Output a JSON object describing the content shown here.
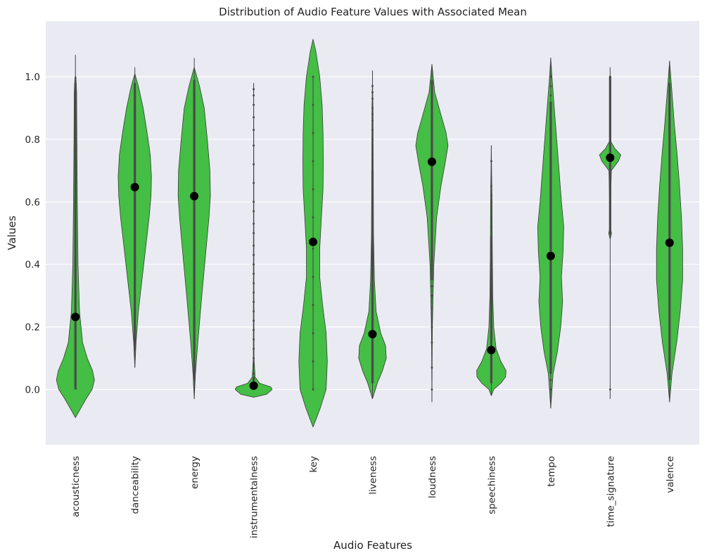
{
  "chart_data": {
    "type": "violin",
    "title": "Distribution of Audio Feature Values with Associated Mean",
    "xlabel": "Audio Features",
    "ylabel": "Values",
    "ylim": [
      -0.18,
      1.18
    ],
    "yticks": [
      0.0,
      0.2,
      0.4,
      0.6,
      0.8,
      1.0
    ],
    "ytick_labels": [
      "0.0",
      "0.2",
      "0.4",
      "0.6",
      "0.8",
      "1.0"
    ],
    "grid": true,
    "colors": {
      "violin_fill": "#44be44",
      "violin_edge": "#3a3a3a",
      "mean_marker": "#000000",
      "background": "#eaeaf2",
      "grid": "#ffffff"
    },
    "categories": [
      "acousticness",
      "danceability",
      "energy",
      "instrumentalness",
      "key",
      "liveness",
      "loudness",
      "speechiness",
      "tempo",
      "time_signature",
      "valence"
    ],
    "means": [
      0.232,
      0.647,
      0.618,
      0.012,
      0.472,
      0.177,
      0.728,
      0.126,
      0.427,
      0.741,
      0.469
    ],
    "violins": [
      {
        "name": "acousticness",
        "whisker": [
          0.0,
          1.07
        ],
        "bar": [
          0.0,
          0.98
        ],
        "profile": [
          [
            -0.09,
            0.0
          ],
          [
            -0.07,
            0.15
          ],
          [
            -0.03,
            0.45
          ],
          [
            0.0,
            0.7
          ],
          [
            0.03,
            0.8
          ],
          [
            0.06,
            0.72
          ],
          [
            0.1,
            0.5
          ],
          [
            0.15,
            0.3
          ],
          [
            0.25,
            0.17
          ],
          [
            0.4,
            0.11
          ],
          [
            0.6,
            0.08
          ],
          [
            0.8,
            0.06
          ],
          [
            0.95,
            0.05
          ],
          [
            1.0,
            0.02
          ]
        ]
      },
      {
        "name": "danceability",
        "whisker": [
          0.07,
          1.03
        ],
        "bar": [
          0.13,
          0.98
        ],
        "profile": [
          [
            0.07,
            0.0
          ],
          [
            0.15,
            0.05
          ],
          [
            0.25,
            0.15
          ],
          [
            0.35,
            0.3
          ],
          [
            0.45,
            0.45
          ],
          [
            0.55,
            0.6
          ],
          [
            0.62,
            0.68
          ],
          [
            0.68,
            0.7
          ],
          [
            0.75,
            0.65
          ],
          [
            0.82,
            0.52
          ],
          [
            0.9,
            0.35
          ],
          [
            0.97,
            0.15
          ],
          [
            1.01,
            0.0
          ]
        ]
      },
      {
        "name": "energy",
        "whisker": [
          -0.03,
          1.06
        ],
        "bar": [
          0.03,
          0.99
        ],
        "profile": [
          [
            -0.03,
            0.0
          ],
          [
            0.05,
            0.05
          ],
          [
            0.15,
            0.15
          ],
          [
            0.3,
            0.32
          ],
          [
            0.45,
            0.5
          ],
          [
            0.55,
            0.62
          ],
          [
            0.62,
            0.68
          ],
          [
            0.7,
            0.66
          ],
          [
            0.8,
            0.55
          ],
          [
            0.9,
            0.42
          ],
          [
            0.97,
            0.22
          ],
          [
            1.03,
            0.0
          ]
        ]
      },
      {
        "name": "instrumentalness",
        "whisker": [
          0.0,
          0.98
        ],
        "bar": [
          0.0,
          0.04
        ],
        "profile": [
          [
            -0.025,
            0.0
          ],
          [
            -0.015,
            0.55
          ],
          [
            0.0,
            0.78
          ],
          [
            0.008,
            0.72
          ],
          [
            0.02,
            0.25
          ],
          [
            0.04,
            0.06
          ],
          [
            0.1,
            0.015
          ],
          [
            0.5,
            0.01
          ],
          [
            0.97,
            0.0
          ]
        ]
      },
      {
        "name": "key",
        "whisker": [
          0.0,
          1.0
        ],
        "bar": [
          0.0,
          0.0
        ],
        "profile": [
          [
            -0.12,
            0.0
          ],
          [
            -0.06,
            0.3
          ],
          [
            0.0,
            0.55
          ],
          [
            0.09,
            0.6
          ],
          [
            0.18,
            0.55
          ],
          [
            0.27,
            0.4
          ],
          [
            0.36,
            0.28
          ],
          [
            0.45,
            0.28
          ],
          [
            0.55,
            0.35
          ],
          [
            0.64,
            0.42
          ],
          [
            0.73,
            0.43
          ],
          [
            0.82,
            0.42
          ],
          [
            0.91,
            0.38
          ],
          [
            1.0,
            0.28
          ],
          [
            1.08,
            0.12
          ],
          [
            1.12,
            0.0
          ]
        ]
      },
      {
        "name": "liveness",
        "whisker": [
          -0.03,
          1.02
        ],
        "bar": [
          0.02,
          0.7
        ],
        "profile": [
          [
            -0.03,
            0.0
          ],
          [
            0.02,
            0.2
          ],
          [
            0.06,
            0.42
          ],
          [
            0.1,
            0.58
          ],
          [
            0.14,
            0.55
          ],
          [
            0.18,
            0.35
          ],
          [
            0.25,
            0.15
          ],
          [
            0.35,
            0.08
          ],
          [
            0.5,
            0.04
          ],
          [
            0.7,
            0.03
          ],
          [
            0.9,
            0.02
          ],
          [
            1.0,
            0.0
          ]
        ]
      },
      {
        "name": "loudness",
        "whisker": [
          -0.04,
          1.04
        ],
        "bar": [
          0.35,
          0.99
        ],
        "profile": [
          [
            -0.04,
            0.0
          ],
          [
            0.2,
            0.02
          ],
          [
            0.4,
            0.08
          ],
          [
            0.55,
            0.2
          ],
          [
            0.65,
            0.38
          ],
          [
            0.72,
            0.55
          ],
          [
            0.78,
            0.68
          ],
          [
            0.82,
            0.6
          ],
          [
            0.86,
            0.45
          ],
          [
            0.9,
            0.3
          ],
          [
            0.95,
            0.12
          ],
          [
            1.04,
            0.0
          ]
        ]
      },
      {
        "name": "speechiness",
        "whisker": [
          -0.02,
          0.78
        ],
        "bar": [
          0.02,
          0.49
        ],
        "profile": [
          [
            -0.02,
            0.0
          ],
          [
            0.0,
            0.1
          ],
          [
            0.02,
            0.4
          ],
          [
            0.04,
            0.6
          ],
          [
            0.06,
            0.62
          ],
          [
            0.09,
            0.4
          ],
          [
            0.13,
            0.2
          ],
          [
            0.2,
            0.1
          ],
          [
            0.3,
            0.06
          ],
          [
            0.45,
            0.04
          ],
          [
            0.6,
            0.03
          ],
          [
            0.78,
            0.0
          ]
        ]
      },
      {
        "name": "tempo",
        "whisker": [
          -0.06,
          1.06
        ],
        "bar": [
          0.05,
          0.92
        ],
        "profile": [
          [
            -0.06,
            0.0
          ],
          [
            0.05,
            0.1
          ],
          [
            0.12,
            0.28
          ],
          [
            0.2,
            0.42
          ],
          [
            0.28,
            0.5
          ],
          [
            0.36,
            0.45
          ],
          [
            0.44,
            0.52
          ],
          [
            0.52,
            0.55
          ],
          [
            0.6,
            0.45
          ],
          [
            0.7,
            0.35
          ],
          [
            0.8,
            0.25
          ],
          [
            0.9,
            0.15
          ],
          [
            1.0,
            0.05
          ],
          [
            1.06,
            0.0
          ]
        ]
      },
      {
        "name": "time_signature",
        "whisker": [
          -0.03,
          1.03
        ],
        "bar": [
          0.5,
          1.0
        ],
        "profile": [
          [
            0.48,
            0.0
          ],
          [
            0.5,
            0.06
          ],
          [
            0.52,
            0.0
          ],
          [
            0.7,
            0.05
          ],
          [
            0.73,
            0.35
          ],
          [
            0.75,
            0.45
          ],
          [
            0.77,
            0.2
          ],
          [
            0.79,
            0.05
          ],
          [
            0.8,
            0.0
          ]
        ]
      },
      {
        "name": "valence",
        "whisker": [
          -0.04,
          1.05
        ],
        "bar": [
          0.03,
          0.98
        ],
        "profile": [
          [
            -0.04,
            0.0
          ],
          [
            0.05,
            0.1
          ],
          [
            0.15,
            0.3
          ],
          [
            0.25,
            0.45
          ],
          [
            0.35,
            0.55
          ],
          [
            0.45,
            0.55
          ],
          [
            0.55,
            0.5
          ],
          [
            0.65,
            0.42
          ],
          [
            0.75,
            0.32
          ],
          [
            0.85,
            0.2
          ],
          [
            0.95,
            0.1
          ],
          [
            1.05,
            0.0
          ]
        ]
      }
    ],
    "outliers": [
      {
        "name": "danceability",
        "values": [
          0.13,
          0.16,
          0.18,
          0.2,
          0.22,
          0.24
        ]
      },
      {
        "name": "energy",
        "values": [
          0.03,
          0.06,
          0.09,
          0.12,
          0.15
        ]
      },
      {
        "name": "instrumentalness",
        "values": [
          0.05,
          0.08,
          0.1,
          0.13,
          0.16,
          0.19,
          0.22,
          0.25,
          0.28,
          0.31,
          0.34,
          0.37,
          0.4,
          0.43,
          0.46,
          0.5,
          0.53,
          0.57,
          0.6,
          0.66,
          0.72,
          0.78,
          0.83,
          0.87,
          0.91,
          0.94,
          0.96
        ]
      },
      {
        "name": "key",
        "values": [
          0.0,
          0.09,
          0.18,
          0.27,
          0.36,
          0.45,
          0.55,
          0.64,
          0.73,
          0.82,
          0.91,
          1.0
        ]
      },
      {
        "name": "liveness",
        "values": [
          0.72,
          0.75,
          0.78,
          0.8,
          0.83,
          0.86,
          0.88,
          0.9,
          0.93,
          0.95,
          0.97
        ]
      },
      {
        "name": "loudness",
        "values": [
          0.0,
          0.07,
          0.15,
          0.2,
          0.26,
          0.3,
          0.33
        ]
      },
      {
        "name": "speechiness",
        "values": [
          0.52,
          0.55,
          0.58,
          0.6,
          0.62,
          0.65,
          0.73
        ]
      },
      {
        "name": "tempo",
        "values": [
          0.0,
          0.03,
          0.94,
          0.97,
          1.0
        ]
      },
      {
        "name": "time_signature",
        "values": [
          0.0,
          0.5,
          1.0
        ]
      }
    ]
  }
}
